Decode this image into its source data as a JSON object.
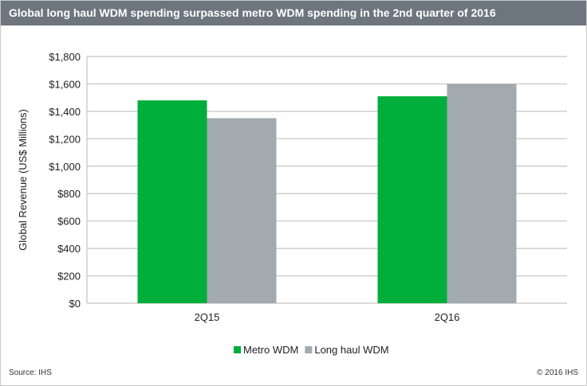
{
  "chart_data": {
    "type": "bar",
    "title": "Global long haul WDM spending surpassed metro WDM spending in the 2nd quarter of 2016",
    "xlabel": "",
    "ylabel": "Global Revenue (US$ Millions)",
    "categories": [
      "2Q15",
      "2Q16"
    ],
    "series": [
      {
        "name": "Metro WDM",
        "values": [
          1480,
          1510
        ],
        "color": "#00ae3c"
      },
      {
        "name": "Long haul WDM",
        "values": [
          1350,
          1600
        ],
        "color": "#a2aaaf"
      }
    ],
    "ylim": [
      0,
      1800
    ],
    "yticks": [
      0,
      200,
      400,
      600,
      800,
      1000,
      1200,
      1400,
      1600,
      1800
    ],
    "ytick_labels": [
      "$0",
      "$200",
      "$400",
      "$600",
      "$800",
      "$1,000",
      "$1,200",
      "$1,400",
      "$1,600",
      "$1,800"
    ],
    "grid": true,
    "legend_position": "bottom"
  },
  "footer": {
    "source": "Source: IHS",
    "copyright": "© 2016 IHS"
  }
}
